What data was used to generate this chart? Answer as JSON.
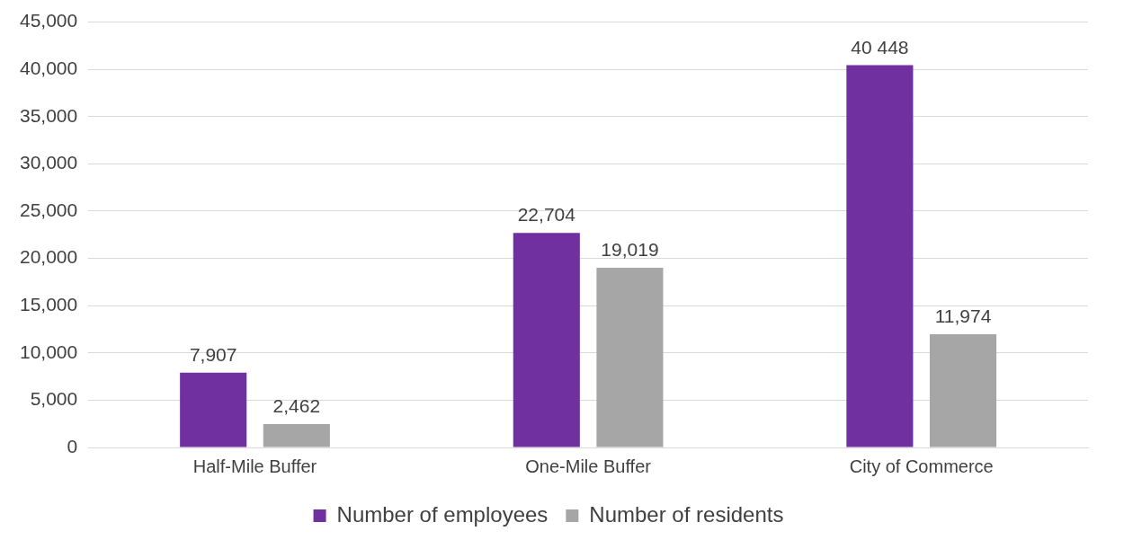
{
  "chart_data": {
    "type": "bar",
    "categories": [
      "Half-Mile Buffer",
      "One-Mile Buffer",
      "City of Commerce"
    ],
    "series": [
      {
        "name": "Number of employees",
        "color": "#7030a0",
        "values": [
          7907,
          22704,
          40448
        ],
        "value_labels": [
          "7,907",
          "22,704",
          "40 448"
        ]
      },
      {
        "name": "Number of residents",
        "color": "#a6a6a6",
        "values": [
          2462,
          19019,
          11974
        ],
        "value_labels": [
          "2,462",
          "19,019",
          "11,974"
        ]
      }
    ],
    "ylim": [
      0,
      45000
    ],
    "yticks": [
      0,
      {
        "value": 5000,
        "label": "5,000"
      },
      {
        "value": 10000,
        "label": "10,000"
      },
      {
        "value": 15000,
        "label": "15,000"
      },
      {
        "value": 20000,
        "label": "20,000"
      },
      {
        "value": 25000,
        "label": "25,000"
      },
      {
        "value": 30000,
        "label": "30,000"
      },
      {
        "value": 35000,
        "label": "35,000"
      },
      {
        "value": 40000,
        "label": "40,000"
      },
      {
        "value": 45000,
        "label": "45,000"
      }
    ],
    "grid": "y",
    "legend": "bottom"
  }
}
